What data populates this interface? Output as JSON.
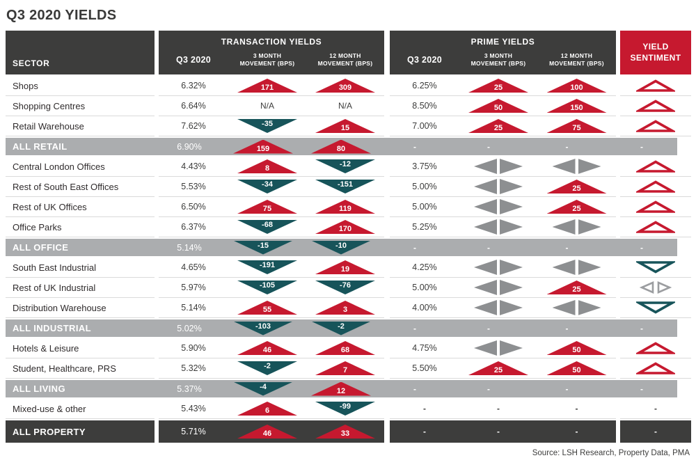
{
  "colors": {
    "accent_red": "#c6192f",
    "accent_teal": "#17545a",
    "charcoal": "#3d3d3c",
    "subtotal_gray": "#abadaf",
    "arrow_gray": "#8d8f91"
  },
  "chart_data": {
    "type": "table",
    "title": "Q3 2020 YIELDS",
    "source": "Source: LSH Research, Property Data, PMA",
    "legend_note": "up = red triangle (yield rise, bps), down = teal triangle (yield fall, bps), side = gray sideways triangles (no change), na = N/A, dash = -",
    "header": {
      "sector": "SECTOR",
      "groups": [
        {
          "title": "TRANSACTION YIELDS",
          "cols": [
            "Q3 2020",
            "3 MONTH MOVEMENT (BPS)",
            "12 MONTH MOVEMENT (BPS)"
          ]
        },
        {
          "title": "PRIME YIELDS",
          "cols": [
            "Q3 2020",
            "3 MONTH MOVEMENT (BPS)",
            "12 MONTH MOVEMENT (BPS)"
          ]
        }
      ],
      "sentiment": "YIELD SENTIMENT"
    },
    "rows": [
      {
        "sector": "Shops",
        "type": "normal",
        "tx_q3": "6.32%",
        "tx_3m": {
          "d": "up",
          "v": "171"
        },
        "tx_12m": {
          "d": "up",
          "v": "309"
        },
        "p_q3": "6.25%",
        "p_3m": {
          "d": "up",
          "v": "25"
        },
        "p_12m": {
          "d": "up",
          "v": "100"
        },
        "sent": "up"
      },
      {
        "sector": "Shopping Centres",
        "type": "normal",
        "tx_q3": "6.64%",
        "tx_3m": {
          "d": "na"
        },
        "tx_12m": {
          "d": "na"
        },
        "p_q3": "8.50%",
        "p_3m": {
          "d": "up",
          "v": "50"
        },
        "p_12m": {
          "d": "up",
          "v": "150"
        },
        "sent": "up"
      },
      {
        "sector": "Retail Warehouse",
        "type": "normal",
        "tx_q3": "7.62%",
        "tx_3m": {
          "d": "down",
          "v": "-35"
        },
        "tx_12m": {
          "d": "up",
          "v": "15"
        },
        "p_q3": "7.00%",
        "p_3m": {
          "d": "up",
          "v": "25"
        },
        "p_12m": {
          "d": "up",
          "v": "75"
        },
        "sent": "up"
      },
      {
        "sector": "ALL RETAIL",
        "type": "subtotal",
        "tx_q3": "6.90%",
        "tx_3m": {
          "d": "up",
          "v": "159"
        },
        "tx_12m": {
          "d": "up",
          "v": "80"
        },
        "p_q3": "-",
        "p_3m": {
          "d": "dash"
        },
        "p_12m": {
          "d": "dash"
        },
        "sent": "dash"
      },
      {
        "sector": "Central London Offices",
        "type": "normal",
        "tx_q3": "4.43%",
        "tx_3m": {
          "d": "up",
          "v": "8"
        },
        "tx_12m": {
          "d": "down",
          "v": "-12"
        },
        "p_q3": "3.75%",
        "p_3m": {
          "d": "side"
        },
        "p_12m": {
          "d": "side"
        },
        "sent": "up"
      },
      {
        "sector": "Rest of South East Offices",
        "type": "normal",
        "tx_q3": "5.53%",
        "tx_3m": {
          "d": "down",
          "v": "-34"
        },
        "tx_12m": {
          "d": "down",
          "v": "-151"
        },
        "p_q3": "5.00%",
        "p_3m": {
          "d": "side"
        },
        "p_12m": {
          "d": "up",
          "v": "25"
        },
        "sent": "up"
      },
      {
        "sector": "Rest of UK Offices",
        "type": "normal",
        "tx_q3": "6.50%",
        "tx_3m": {
          "d": "up",
          "v": "75"
        },
        "tx_12m": {
          "d": "up",
          "v": "119"
        },
        "p_q3": "5.00%",
        "p_3m": {
          "d": "side"
        },
        "p_12m": {
          "d": "up",
          "v": "25"
        },
        "sent": "up"
      },
      {
        "sector": "Office Parks",
        "type": "normal",
        "tx_q3": "6.37%",
        "tx_3m": {
          "d": "down",
          "v": "-68"
        },
        "tx_12m": {
          "d": "up",
          "v": "170"
        },
        "p_q3": "5.25%",
        "p_3m": {
          "d": "side"
        },
        "p_12m": {
          "d": "side"
        },
        "sent": "up"
      },
      {
        "sector": "ALL OFFICE",
        "type": "subtotal",
        "tx_q3": "5.14%",
        "tx_3m": {
          "d": "down",
          "v": "-15"
        },
        "tx_12m": {
          "d": "down",
          "v": "-10"
        },
        "p_q3": "-",
        "p_3m": {
          "d": "dash"
        },
        "p_12m": {
          "d": "dash"
        },
        "sent": "dash"
      },
      {
        "sector": "South East Industrial",
        "type": "normal",
        "tx_q3": "4.65%",
        "tx_3m": {
          "d": "down",
          "v": "-191"
        },
        "tx_12m": {
          "d": "up",
          "v": "19"
        },
        "p_q3": "4.25%",
        "p_3m": {
          "d": "side"
        },
        "p_12m": {
          "d": "side"
        },
        "sent": "down"
      },
      {
        "sector": "Rest of UK Industrial",
        "type": "normal",
        "tx_q3": "5.97%",
        "tx_3m": {
          "d": "down",
          "v": "-105"
        },
        "tx_12m": {
          "d": "down",
          "v": "-76"
        },
        "p_q3": "5.00%",
        "p_3m": {
          "d": "side"
        },
        "p_12m": {
          "d": "up",
          "v": "25"
        },
        "sent": "side"
      },
      {
        "sector": "Distribution Warehouse",
        "type": "normal",
        "tx_q3": "5.14%",
        "tx_3m": {
          "d": "up",
          "v": "55"
        },
        "tx_12m": {
          "d": "up",
          "v": "3"
        },
        "p_q3": "4.00%",
        "p_3m": {
          "d": "side"
        },
        "p_12m": {
          "d": "side"
        },
        "sent": "down"
      },
      {
        "sector": "ALL INDUSTRIAL",
        "type": "subtotal",
        "tx_q3": "5.02%",
        "tx_3m": {
          "d": "down",
          "v": "-103"
        },
        "tx_12m": {
          "d": "down",
          "v": "-2"
        },
        "p_q3": "-",
        "p_3m": {
          "d": "dash"
        },
        "p_12m": {
          "d": "dash"
        },
        "sent": "dash"
      },
      {
        "sector": "Hotels & Leisure",
        "type": "normal",
        "tx_q3": "5.90%",
        "tx_3m": {
          "d": "up",
          "v": "46"
        },
        "tx_12m": {
          "d": "up",
          "v": "68"
        },
        "p_q3": "4.75%",
        "p_3m": {
          "d": "side"
        },
        "p_12m": {
          "d": "up",
          "v": "50"
        },
        "sent": "up"
      },
      {
        "sector": "Student, Healthcare, PRS",
        "type": "normal",
        "tx_q3": "5.32%",
        "tx_3m": {
          "d": "down",
          "v": "-2"
        },
        "tx_12m": {
          "d": "up",
          "v": "7"
        },
        "p_q3": "5.50%",
        "p_3m": {
          "d": "up",
          "v": "25"
        },
        "p_12m": {
          "d": "up",
          "v": "50"
        },
        "sent": "up"
      },
      {
        "sector": "ALL LIVING",
        "type": "subtotal",
        "tx_q3": "5.37%",
        "tx_3m": {
          "d": "down",
          "v": "-4"
        },
        "tx_12m": {
          "d": "up",
          "v": "12"
        },
        "p_q3": "-",
        "p_3m": {
          "d": "dash"
        },
        "p_12m": {
          "d": "dash"
        },
        "sent": "dash"
      },
      {
        "sector": "Mixed-use & other",
        "type": "normal",
        "tx_q3": "5.43%",
        "tx_3m": {
          "d": "up",
          "v": "6"
        },
        "tx_12m": {
          "d": "down",
          "v": "-99"
        },
        "p_q3": "-",
        "p_3m": {
          "d": "dash"
        },
        "p_12m": {
          "d": "dash"
        },
        "sent": "dash"
      },
      {
        "sector": "ALL PROPERTY",
        "type": "total",
        "tx_q3": "5.71%",
        "tx_3m": {
          "d": "up",
          "v": "46"
        },
        "tx_12m": {
          "d": "up",
          "v": "33"
        },
        "p_q3": "-",
        "p_3m": {
          "d": "dash"
        },
        "p_12m": {
          "d": "dash"
        },
        "sent": "dash"
      }
    ]
  }
}
